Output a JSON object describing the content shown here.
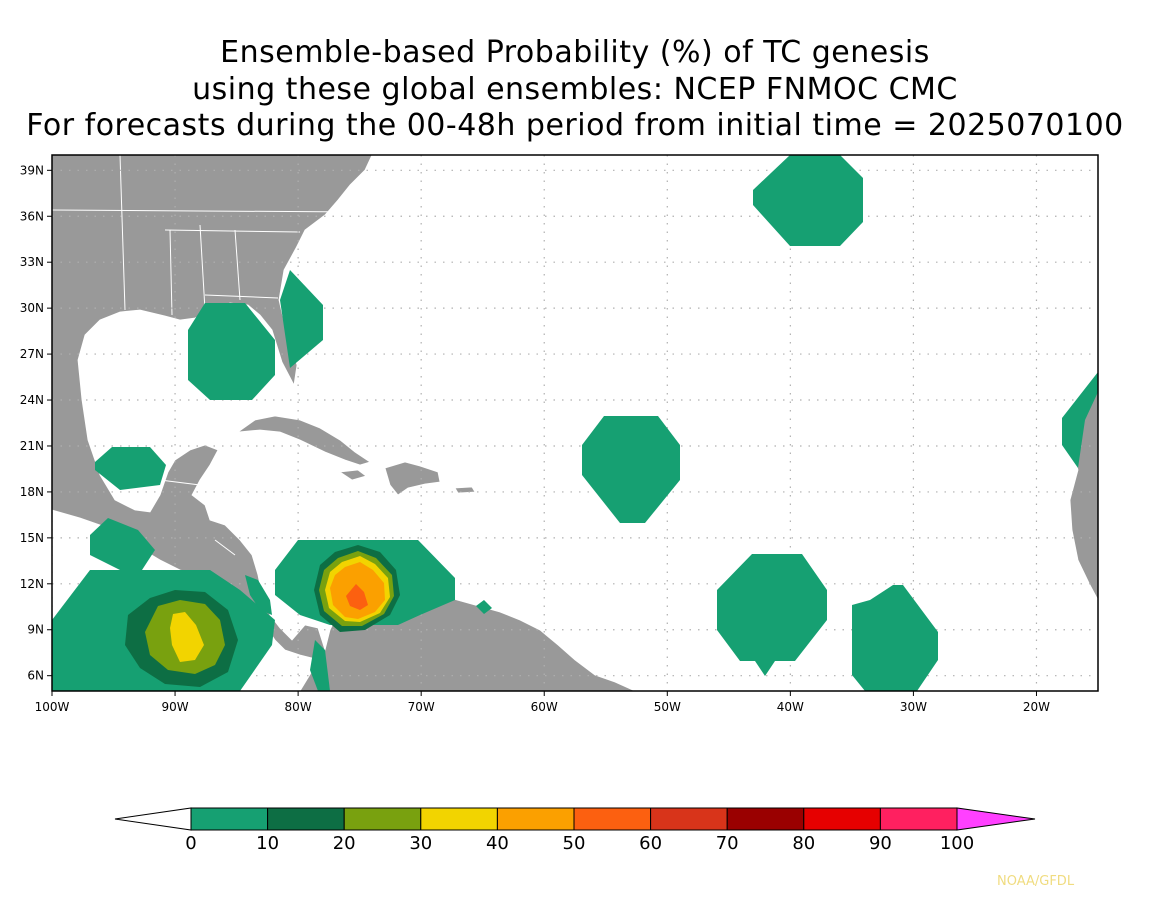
{
  "title": {
    "line1": "Ensemble-based Probability (%) of TC genesis",
    "line2": "using these global ensembles:   NCEP FNMOC CMC",
    "line3": "For forecasts during the 00-48h period from initial time = 2025070100"
  },
  "map": {
    "lon_range": [
      -100,
      -15
    ],
    "lat_range": [
      5,
      40
    ],
    "lat_ticks": [
      "39N",
      "36N",
      "33N",
      "30N",
      "27N",
      "24N",
      "21N",
      "18N",
      "15N",
      "12N",
      "9N",
      "6N"
    ],
    "lon_ticks": [
      "100W",
      "90W",
      "80W",
      "70W",
      "60W",
      "50W",
      "40W",
      "30W",
      "20W"
    ],
    "colors": {
      "land": "#999999",
      "border": "#ffffff",
      "grid": "#b0b0b0"
    }
  },
  "colorbar": {
    "labels": [
      "0",
      "10",
      "20",
      "30",
      "40",
      "50",
      "60",
      "70",
      "80",
      "90",
      "100"
    ],
    "colors": [
      "#16a072",
      "#0d6e44",
      "#79a10f",
      "#f2d400",
      "#fba000",
      "#fc6010",
      "#d8341a",
      "#9a0000",
      "#e60000",
      "#ff2060"
    ],
    "under_color": "#ffffff",
    "over_color": "#ff40ff"
  },
  "credit": "NOAA/GFDL"
}
